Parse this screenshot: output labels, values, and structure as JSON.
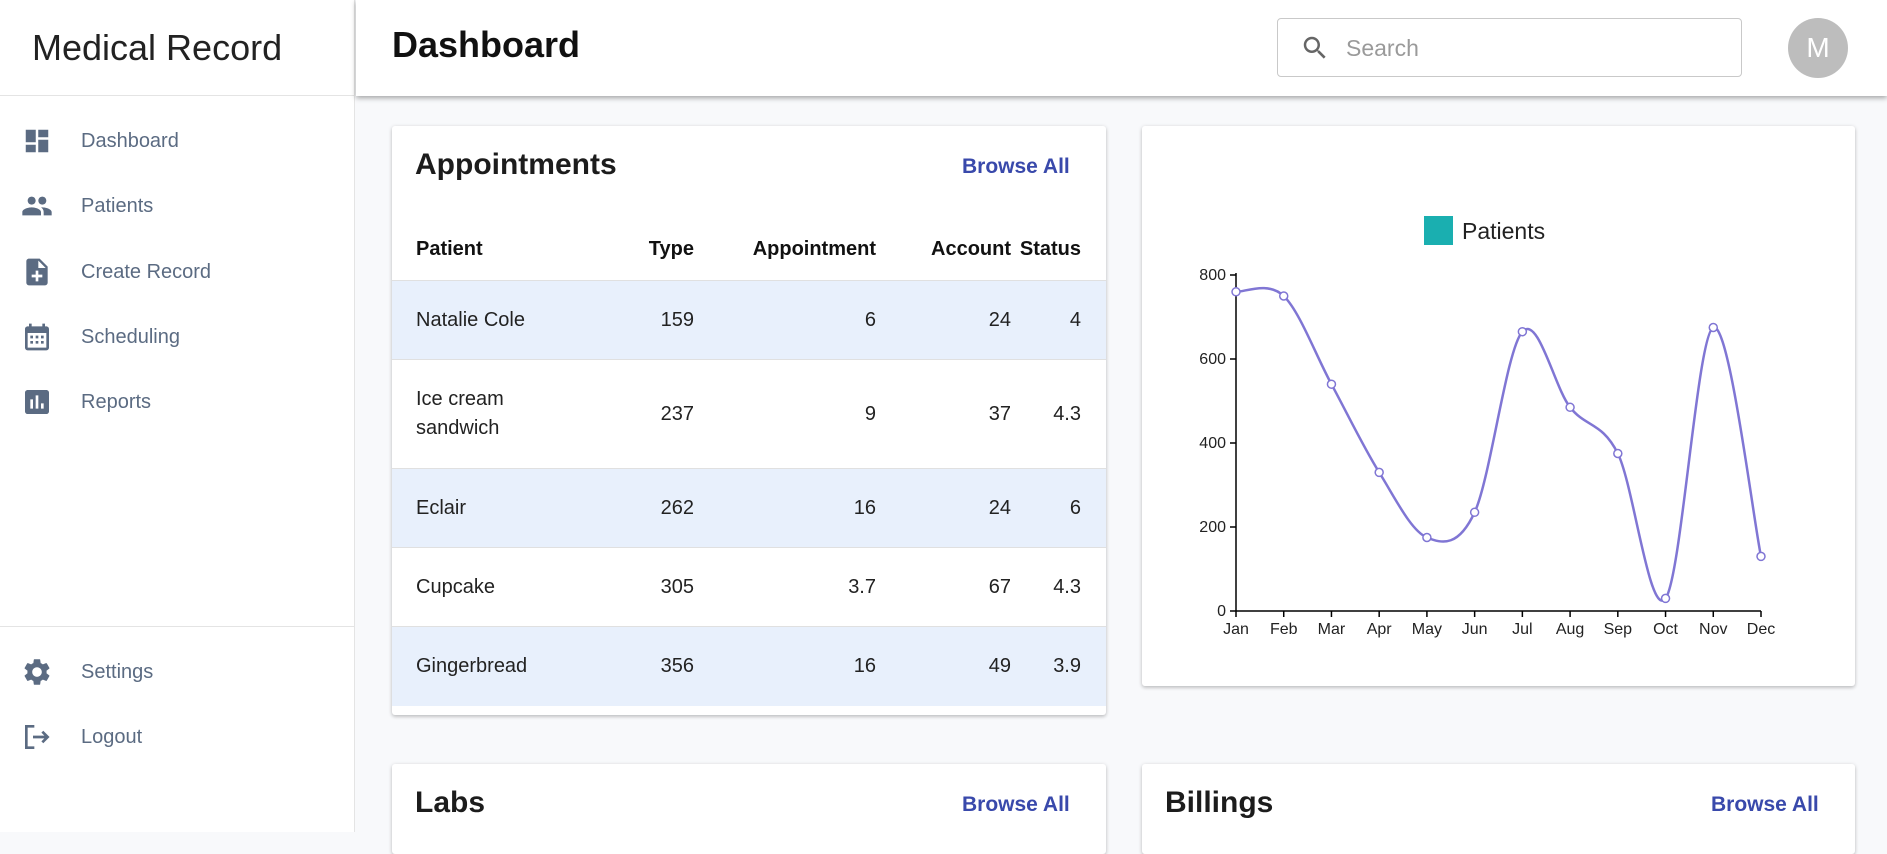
{
  "app": {
    "title": "Medical Record"
  },
  "sidebar": {
    "items": [
      {
        "label": "Dashboard",
        "icon": "dashboard-icon"
      },
      {
        "label": "Patients",
        "icon": "people-icon"
      },
      {
        "label": "Create Record",
        "icon": "note-add-icon"
      },
      {
        "label": "Scheduling",
        "icon": "calendar-icon"
      },
      {
        "label": "Reports",
        "icon": "assessment-icon"
      }
    ],
    "bottom_items": [
      {
        "label": "Settings",
        "icon": "gear-icon"
      },
      {
        "label": "Logout",
        "icon": "logout-icon"
      }
    ]
  },
  "header": {
    "title": "Dashboard",
    "search_placeholder": "Search",
    "avatar_initial": "M"
  },
  "appointments": {
    "title": "Appointments",
    "browse_label": "Browse All",
    "columns": [
      "Patient",
      "Type",
      "Appointment",
      "Account",
      "Status"
    ],
    "rows": [
      [
        "Natalie Cole",
        "159",
        "6",
        "24",
        "4"
      ],
      [
        "Ice cream sandwich",
        "237",
        "9",
        "37",
        "4.3"
      ],
      [
        "Eclair",
        "262",
        "16",
        "24",
        "6"
      ],
      [
        "Cupcake",
        "305",
        "3.7",
        "67",
        "4.3"
      ],
      [
        "Gingerbread",
        "356",
        "16",
        "49",
        "3.9"
      ]
    ]
  },
  "labs": {
    "title": "Labs",
    "browse_label": "Browse All"
  },
  "billings": {
    "title": "Billings",
    "browse_label": "Browse All"
  },
  "colors": {
    "accent": "#3949ab",
    "line": "#8076d4",
    "legend_swatch": "#1aafb0",
    "row_stripe": "#e8f0fc",
    "icon": "#5b6b82"
  },
  "chart_data": {
    "type": "line",
    "categories": [
      "Jan",
      "Feb",
      "Mar",
      "Apr",
      "May",
      "Jun",
      "Jul",
      "Aug",
      "Sep",
      "Oct",
      "Nov",
      "Dec"
    ],
    "series": [
      {
        "name": "Patients",
        "values": [
          760,
          750,
          540,
          330,
          175,
          235,
          665,
          485,
          375,
          30,
          675,
          130
        ]
      }
    ],
    "ylim": [
      0,
      800
    ],
    "yticks": [
      0,
      200,
      400,
      600,
      800
    ],
    "legend_position": "top-center",
    "grid": false,
    "title": "",
    "xlabel": "",
    "ylabel": ""
  }
}
